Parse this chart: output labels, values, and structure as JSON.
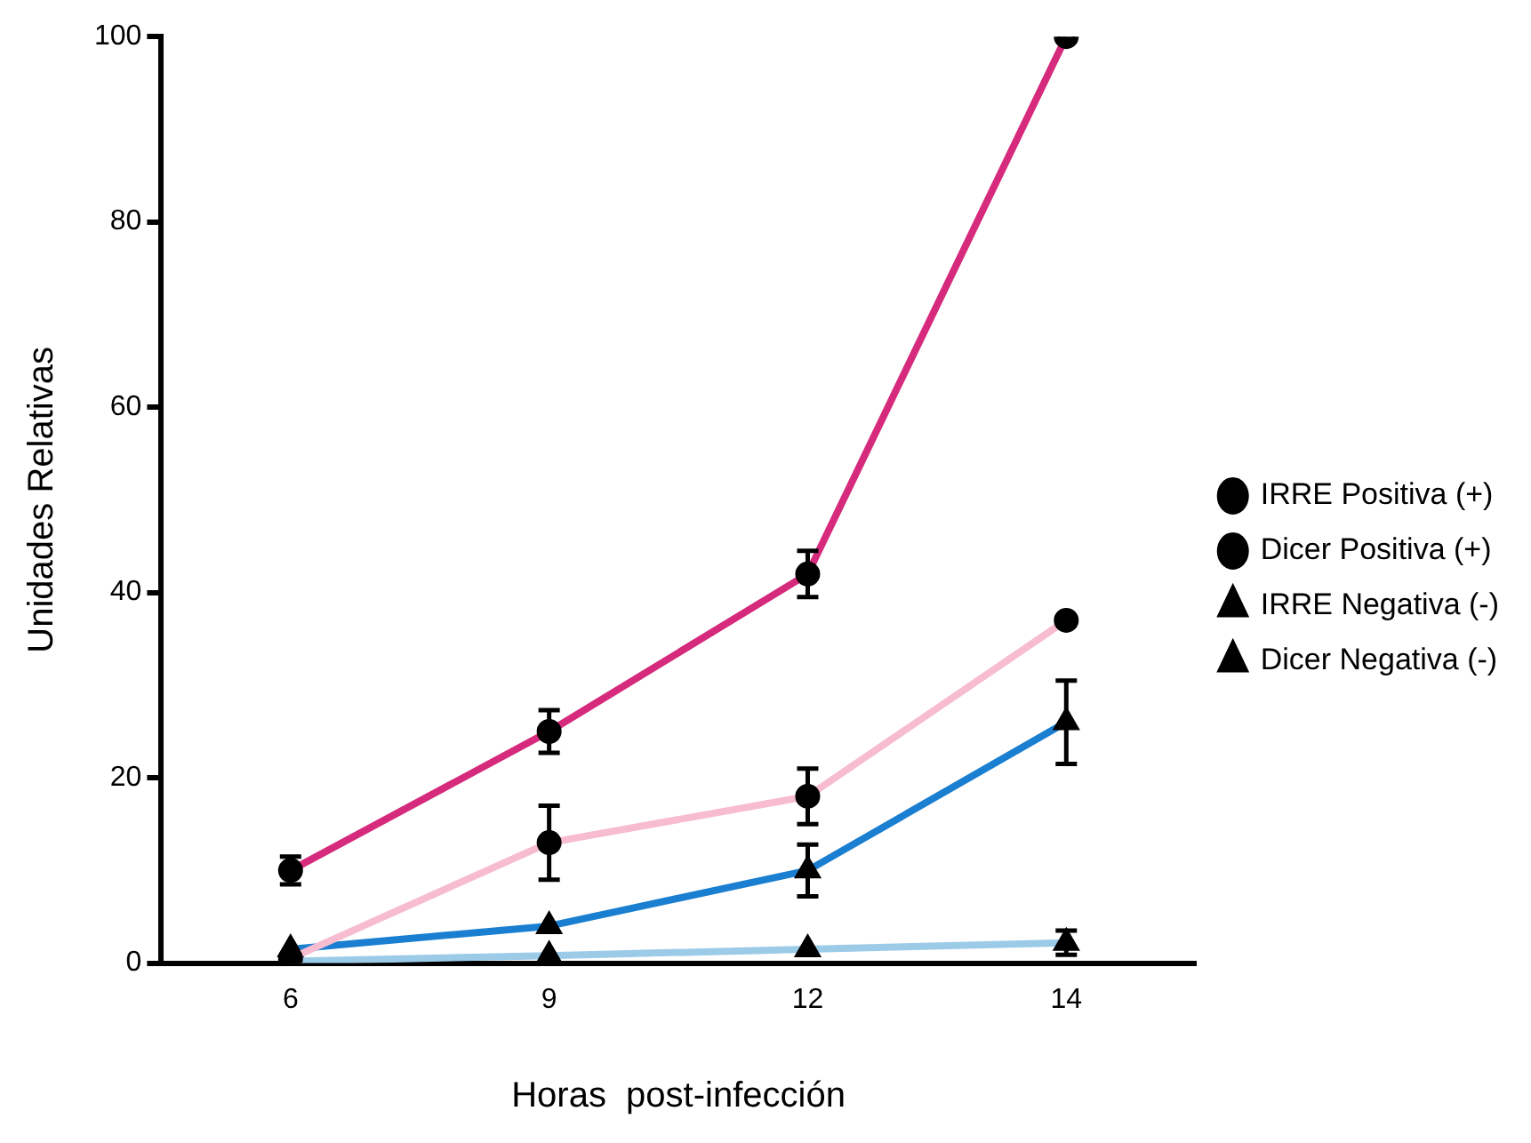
{
  "chart_data": {
    "type": "line",
    "xlabel": "Horas  post-infección",
    "ylabel": "Unidades Relativas",
    "categories": [
      "6",
      "9",
      "12",
      "14"
    ],
    "ylim": [
      0,
      100
    ],
    "yticks": [
      0,
      20,
      40,
      60,
      80,
      100
    ],
    "grid": false,
    "legend": "right",
    "line_style": "solid",
    "series": [
      {
        "name": "IRRE Positiva (+)",
        "color": "#d62a7c",
        "marker": "circle",
        "values": [
          10,
          25,
          42,
          100
        ],
        "errors": [
          1.5,
          2.3,
          2.5,
          null
        ]
      },
      {
        "name": "Dicer Positiva (+)",
        "color": "#f7bcd0",
        "marker": "circle",
        "values": [
          0.5,
          13,
          18,
          37
        ],
        "errors": [
          null,
          4,
          3,
          null
        ]
      },
      {
        "name": "IRRE Negativa (-)",
        "color": "#1a7fd0",
        "marker": "triangle",
        "values": [
          1.5,
          4,
          10,
          26
        ],
        "errors": [
          null,
          null,
          2.8,
          4.5
        ]
      },
      {
        "name": "Dicer Negativa (-)",
        "color": "#9ccbe8",
        "marker": "triangle",
        "values": [
          0.2,
          0.8,
          1.5,
          2.2
        ],
        "errors": [
          null,
          null,
          null,
          1.3
        ]
      }
    ]
  }
}
